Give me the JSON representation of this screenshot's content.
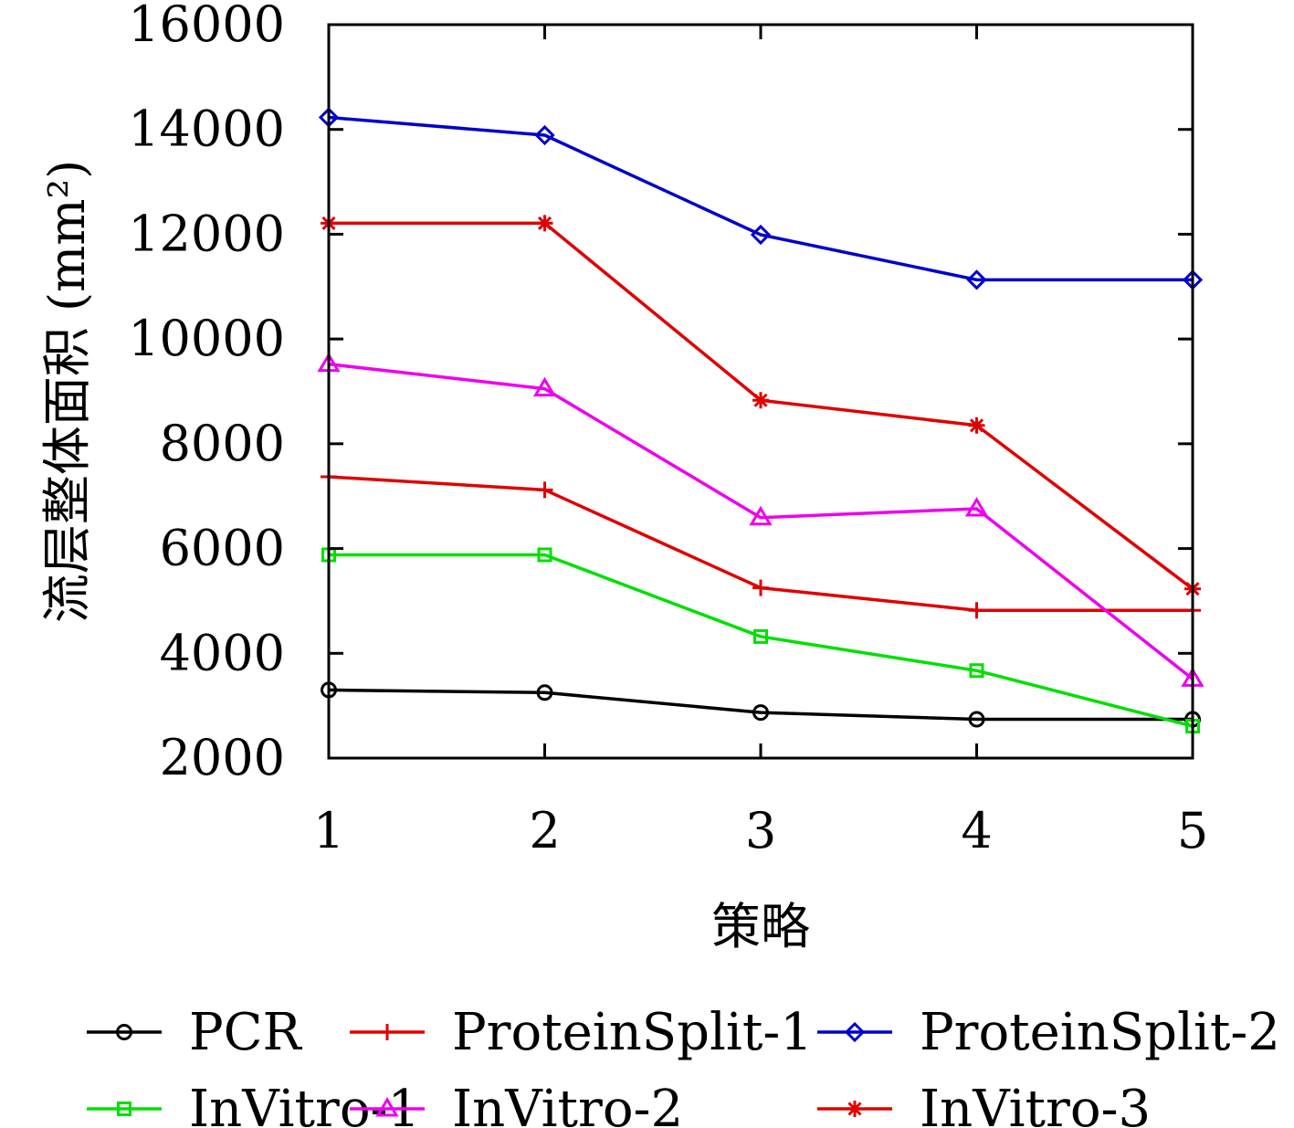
{
  "chart_data": {
    "type": "line",
    "title": "",
    "xlabel": "策略",
    "ylabel": "流层整体面积 (mm²)",
    "x": [
      1,
      2,
      3,
      4,
      5
    ],
    "xlim": [
      1,
      5
    ],
    "ylim": [
      2000,
      16000
    ],
    "xticks": [
      1,
      2,
      3,
      4,
      5
    ],
    "yticks": [
      2000,
      4000,
      6000,
      8000,
      10000,
      12000,
      14000,
      16000
    ],
    "grid": false,
    "legend_position": "bottom",
    "series": [
      {
        "name": "PCR",
        "color": "#000000",
        "marker": "circle",
        "values": [
          3300,
          3250,
          2870,
          2740,
          2740
        ]
      },
      {
        "name": "ProteinSplit-1",
        "color": "#e00000",
        "marker": "plus",
        "values": [
          7370,
          7120,
          5250,
          4820,
          4820
        ]
      },
      {
        "name": "ProteinSplit-2",
        "color": "#0000cc",
        "marker": "diamond",
        "values": [
          14230,
          13890,
          11990,
          11130,
          11130
        ]
      },
      {
        "name": "InVitro-1",
        "color": "#00e000",
        "marker": "square",
        "values": [
          5880,
          5880,
          4320,
          3670,
          2610
        ]
      },
      {
        "name": "InVitro-2",
        "color": "#ee00ee",
        "marker": "triangle",
        "values": [
          9520,
          9050,
          6590,
          6760,
          3510
        ]
      },
      {
        "name": "InVitro-3",
        "color": "#e00000",
        "marker": "star",
        "values": [
          12210,
          12210,
          8830,
          8350,
          5230
        ]
      }
    ]
  }
}
